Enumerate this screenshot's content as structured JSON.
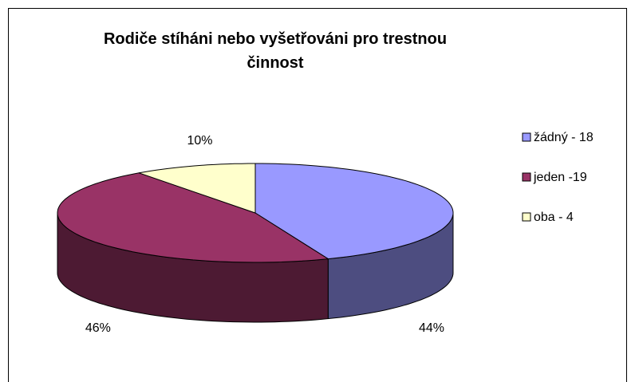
{
  "chart_data": {
    "type": "pie3d",
    "title": "Rodiče stíháni nebo vyšetřováni pro trestnou činnost",
    "categories": [
      "žádný - 18",
      "jeden -19",
      "oba - 4"
    ],
    "values": [
      44,
      46,
      10
    ],
    "value_labels": [
      "44%",
      "46%",
      "10%"
    ],
    "colors": [
      "#9999ff",
      "#993366",
      "#ffffcc"
    ],
    "legend": "right"
  }
}
